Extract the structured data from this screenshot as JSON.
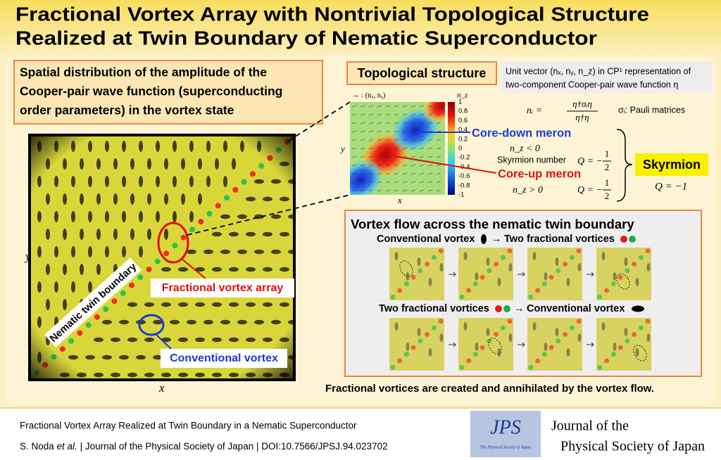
{
  "header": {
    "title": [
      "Fractional Vortex Array with Nontrivial Topological Structure",
      "Realized at Twin Boundary of Nematic Superconductor"
    ]
  },
  "left_panel": {
    "caption": [
      "Spatial distribution of the amplitude of the",
      "Cooper-pair wave function (superconducting",
      "order parameters) in the vortex state"
    ],
    "y_label": "y",
    "x_label": "x",
    "boundary_label": "Nematic twin boundary",
    "array_label": "Fractional vortex array",
    "conventional_label": "Conventional vortex"
  },
  "topology": {
    "title": "Topological structure",
    "description": [
      "Unit vector (nₓ, nᵧ, n_z) in CP¹ representation of",
      "two-component Cooper-pair wave function η"
    ],
    "arrow_legend": "→ : (nₓ, nᵧ)",
    "y_label": "y",
    "x_label": "x",
    "colorbar_label": "n_z",
    "colorbar_ticks": [
      1,
      0.8,
      0.6,
      0.4,
      0.2,
      0,
      -0.2,
      -0.4,
      -0.6,
      -0.8,
      -1
    ],
    "formula": {
      "lhs": "nᵢ =",
      "numerator": "η†σᵢη",
      "denominator": "η†η"
    },
    "pauli": "σᵢ: Pauli matrices",
    "core_down": {
      "label": "Core-down meron",
      "condition": "n_z < 0",
      "number_label": "Skyrmion number",
      "q": "Q = −",
      "num": "1",
      "den": "2"
    },
    "core_up": {
      "label": "Core-up meron",
      "condition": "n_z > 0",
      "q": "Q = −",
      "num": "1",
      "den": "2"
    },
    "skyrmion": "Skyrmion",
    "skyrmion_q": "Q = −1"
  },
  "flow": {
    "title": "Vortex flow across the nematic twin boundary",
    "row1": {
      "from": "Conventional vortex",
      "arrow": "→",
      "to": "Two fractional vortices"
    },
    "row2": {
      "from": "Two fractional vortices",
      "arrow": "→",
      "to": "Conventional vortex"
    },
    "caption": "Fractional vortices are created and annihilated by the vortex flow."
  },
  "footer": {
    "paper_title": "Fractional Vortex Array Realized at Twin Boundary in a Nematic Superconductor",
    "authors": "S. Noda ",
    "et_al": "et al.",
    "citation": " | Journal of the Physical Society of Japan | DOI:10.7566/JPSJ.94.023702",
    "logo": "JPS",
    "logo_sub": "The Physical Society of Japan",
    "journal": [
      "Journal of the",
      "Physical Society of Japan"
    ]
  }
}
